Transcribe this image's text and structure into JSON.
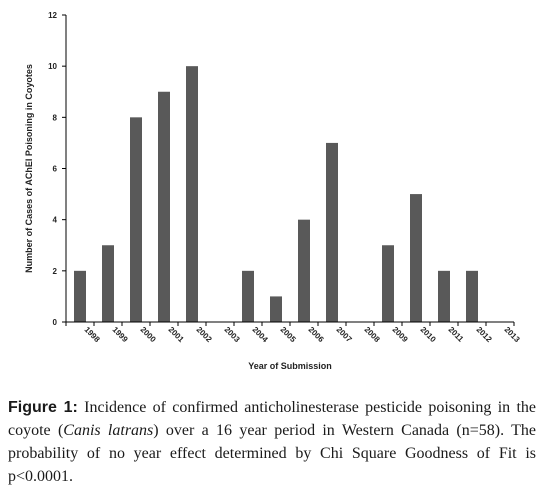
{
  "chart_data": {
    "type": "bar",
    "categories": [
      "1998",
      "1999",
      "2000",
      "2001",
      "2002",
      "2003",
      "2004",
      "2005",
      "2006",
      "2007",
      "2008",
      "2009",
      "2010",
      "2011",
      "2012",
      "2013"
    ],
    "values": [
      2,
      3,
      8,
      9,
      10,
      0,
      2,
      1,
      4,
      7,
      0,
      3,
      5,
      2,
      2,
      0
    ],
    "xlabel": "Year of Submission",
    "ylabel": "Number of Cases of AChEI Poisoning in Coyotes",
    "ylim": [
      0,
      12
    ],
    "yticks": [
      0,
      2,
      4,
      6,
      8,
      10,
      12
    ],
    "bar_color": "#595959",
    "grid": false,
    "legend": "none"
  },
  "caption": {
    "label": "Figure 1:",
    "text_before": " Incidence of confirmed anticholinesterase pesticide poisoning in the coyote (",
    "species": "Canis latrans",
    "text_after": ") over a 16 year period in Western Canada (n=58). The probability of no year effect determined by Chi Square Goodness of Fit is p<0.0001."
  }
}
